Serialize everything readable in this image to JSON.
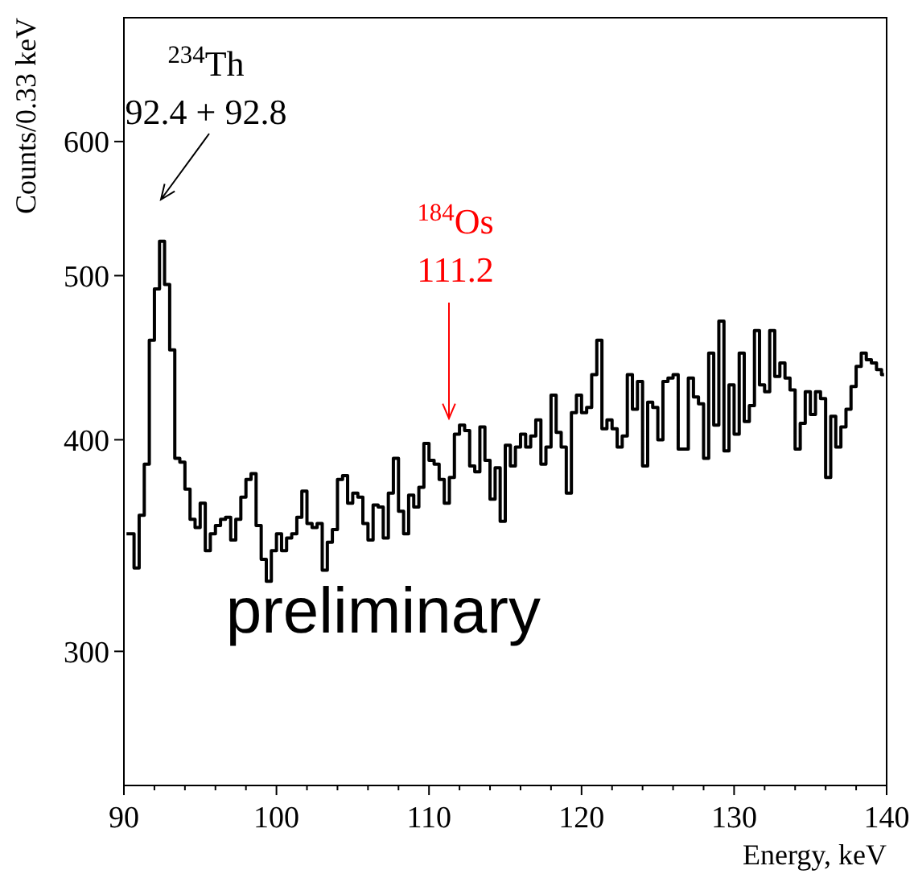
{
  "chart_data": {
    "type": "step",
    "xlabel": "Energy, keV",
    "ylabel": "Counts/0.33 keV",
    "x": [
      90.17,
      90.5,
      90.83,
      91.17,
      91.5,
      91.83,
      92.17,
      92.5,
      92.83,
      93.17,
      93.5,
      93.83,
      94.17,
      94.5,
      94.83,
      95.17,
      95.5,
      95.83,
      96.17,
      96.5,
      96.83,
      97.17,
      97.5,
      97.83,
      98.17,
      98.5,
      98.83,
      99.17,
      99.5,
      99.83,
      100.17,
      100.5,
      100.83,
      101.17,
      101.5,
      101.83,
      102.17,
      102.5,
      102.83,
      103.17,
      103.5,
      103.83,
      104.17,
      104.5,
      104.83,
      105.17,
      105.5,
      105.83,
      106.17,
      106.5,
      106.83,
      107.17,
      107.5,
      107.83,
      108.17,
      108.5,
      108.83,
      109.17,
      109.5,
      109.83,
      110.17,
      110.5,
      110.83,
      111.17,
      111.5,
      111.83,
      112.17,
      112.5,
      112.83,
      113.17,
      113.5,
      113.83,
      114.17,
      114.5,
      114.83,
      115.17,
      115.5,
      115.83,
      116.17,
      116.5,
      116.83,
      117.17,
      117.5,
      117.83,
      118.17,
      118.5,
      118.83,
      119.17,
      119.5,
      119.83,
      120.17,
      120.5,
      120.83,
      121.17,
      121.5,
      121.83,
      122.17,
      122.5,
      122.83,
      123.17,
      123.5,
      123.83,
      124.17,
      124.5,
      124.83,
      125.17,
      125.5,
      125.83,
      126.17,
      126.5,
      126.83,
      127.17,
      127.5,
      127.83,
      128.17,
      128.5,
      128.83,
      129.17,
      129.5,
      129.83,
      130.17,
      130.5,
      130.83,
      131.17,
      131.5,
      131.83,
      132.17,
      132.5,
      132.83,
      133.17,
      133.5,
      133.83,
      134.17,
      134.5,
      134.83,
      135.17,
      135.5,
      135.83,
      136.17,
      136.5,
      136.83,
      137.17,
      137.5,
      137.83,
      138.17,
      138.5,
      138.83,
      139.17,
      139.5,
      139.83
    ],
    "values": [
      352,
      352,
      336,
      361,
      387,
      458,
      491,
      524,
      494,
      452,
      390,
      388,
      374,
      359,
      355,
      367,
      344,
      352,
      356,
      359,
      360,
      349,
      359,
      370,
      379,
      382,
      356,
      340,
      330,
      344,
      352,
      344,
      350,
      352,
      360,
      373,
      357,
      355,
      357,
      335,
      348,
      354,
      379,
      381,
      367,
      372,
      370,
      357,
      349,
      366,
      365,
      350,
      372,
      390,
      363,
      352,
      371,
      365,
      375,
      398,
      389,
      387,
      379,
      367,
      380,
      403,
      408,
      405,
      386,
      383,
      407,
      389,
      369,
      385,
      358,
      397,
      386,
      396,
      403,
      396,
      402,
      411,
      387,
      396,
      425,
      404,
      396,
      372,
      415,
      425,
      415,
      418,
      437,
      458,
      406,
      411,
      406,
      396,
      402,
      437,
      417,
      433,
      386,
      421,
      418,
      400,
      433,
      435,
      437,
      395,
      395,
      435,
      424,
      420,
      390,
      450,
      408,
      470,
      394,
      431,
      403,
      450,
      410,
      419,
      464,
      431,
      427,
      464,
      436,
      444,
      435,
      428,
      395,
      409,
      427,
      414,
      427,
      423,
      380,
      413,
      396,
      407,
      417,
      430,
      442,
      450,
      446,
      444,
      440,
      437
    ],
    "color": "#000000",
    "log": true,
    "xlim": [
      90,
      140
    ],
    "ylim": [
      250,
      710
    ],
    "xticks": [
      90,
      {
        "value": 92,
        "label": null
      },
      {
        "value": 94,
        "label": null
      },
      {
        "value": 96,
        "label": null
      },
      {
        "value": 98,
        "label": null
      },
      100,
      {
        "value": 102,
        "label": null
      },
      {
        "value": 104,
        "label": null
      },
      {
        "value": 106,
        "label": null
      },
      {
        "value": 108,
        "label": null
      },
      110,
      {
        "value": 112,
        "label": null
      },
      {
        "value": 114,
        "label": null
      },
      {
        "value": 116,
        "label": null
      },
      {
        "value": 118,
        "label": null
      },
      120,
      {
        "value": 122,
        "label": null
      },
      {
        "value": 124,
        "label": null
      },
      {
        "value": 126,
        "label": null
      },
      {
        "value": 128,
        "label": null
      },
      130,
      {
        "value": 132,
        "label": null
      },
      {
        "value": 134,
        "label": null
      },
      {
        "value": 136,
        "label": null
      },
      {
        "value": 138,
        "label": null
      },
      140
    ],
    "yticks": [
      300,
      400,
      500,
      600
    ],
    "annotations": [
      "$^{234}$Th\n92.4 + 92.8",
      "$^{184}$Os\n111.2",
      "preliminary"
    ]
  }
}
